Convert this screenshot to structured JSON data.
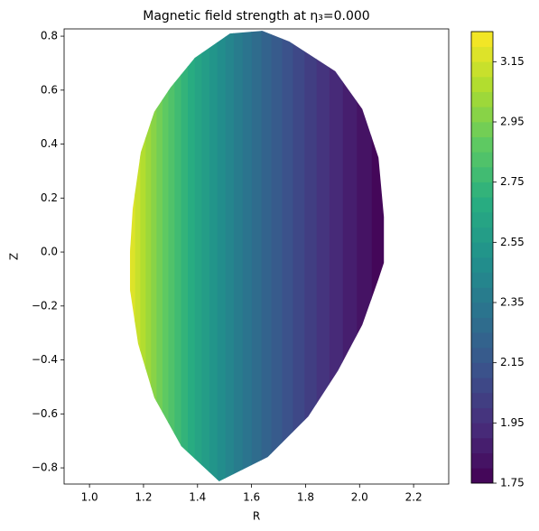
{
  "chart_data": {
    "type": "contour",
    "title": "Magnetic field strength at η₃=0.000",
    "x_label": "R",
    "y_label": "Z",
    "colormap": "viridis",
    "xlim": [
      0.906,
      2.33
    ],
    "ylim": [
      -0.86,
      0.827
    ],
    "xticks": [
      {
        "value": 1.0,
        "label": "1.0"
      },
      {
        "value": 1.2,
        "label": "1.2"
      },
      {
        "value": 1.4,
        "label": "1.4"
      },
      {
        "value": 1.6,
        "label": "1.6"
      },
      {
        "value": 1.8,
        "label": "1.8"
      },
      {
        "value": 2.0,
        "label": "2.0"
      },
      {
        "value": 2.2,
        "label": "2.2"
      }
    ],
    "yticks": [
      {
        "value": -0.8,
        "label": "−0.8"
      },
      {
        "value": -0.6,
        "label": "−0.6"
      },
      {
        "value": -0.4,
        "label": "−0.4"
      },
      {
        "value": -0.2,
        "label": "−0.2"
      },
      {
        "value": 0,
        "label": "0.0"
      },
      {
        "value": 0.2,
        "label": "0.2"
      },
      {
        "value": 0.4,
        "label": "0.4"
      },
      {
        "value": 0.6,
        "label": "0.6"
      },
      {
        "value": 0.8,
        "label": "0.8"
      }
    ],
    "boundary": {
      "r": [
        1.48,
        1.34,
        1.24,
        1.18,
        1.15,
        1.15,
        1.16,
        1.19,
        1.24,
        1.3,
        1.39,
        1.52,
        1.64,
        1.74,
        1.91,
        2.01,
        2.07,
        2.09,
        2.09,
        2.07,
        2.01,
        1.92,
        1.81,
        1.66
      ],
      "z": [
        -0.85,
        -0.72,
        -0.54,
        -0.34,
        -0.14,
        0.0,
        0.16,
        0.37,
        0.52,
        0.61,
        0.72,
        0.81,
        0.82,
        0.78,
        0.67,
        0.53,
        0.35,
        0.13,
        -0.04,
        -0.1,
        -0.27,
        -0.44,
        -0.61,
        -0.76
      ]
    },
    "levels": [
      1.75,
      1.8,
      1.85,
      1.9,
      1.95,
      2.0,
      2.05,
      2.1,
      2.15,
      2.2,
      2.25,
      2.3,
      2.35,
      2.4,
      2.45,
      2.5,
      2.55,
      2.6,
      2.65,
      2.7,
      2.75,
      2.8,
      2.85,
      2.9,
      2.95,
      3.0,
      3.05,
      3.1,
      3.15,
      3.2,
      3.25
    ],
    "level_r": [
      2.103,
      2.044,
      1.989,
      1.937,
      1.887,
      1.84,
      1.795,
      1.752,
      1.712,
      1.673,
      1.636,
      1.6,
      1.566,
      1.533,
      1.502,
      1.472,
      1.443,
      1.415,
      1.389,
      1.363,
      1.338,
      1.314,
      1.291,
      1.269,
      1.247,
      1.227,
      1.207,
      1.187,
      1.168,
      1.15,
      1.132
    ],
    "colorbar_ticks": [
      1.75,
      1.95,
      2.15,
      2.35,
      2.55,
      2.75,
      2.95,
      3.15
    ]
  }
}
